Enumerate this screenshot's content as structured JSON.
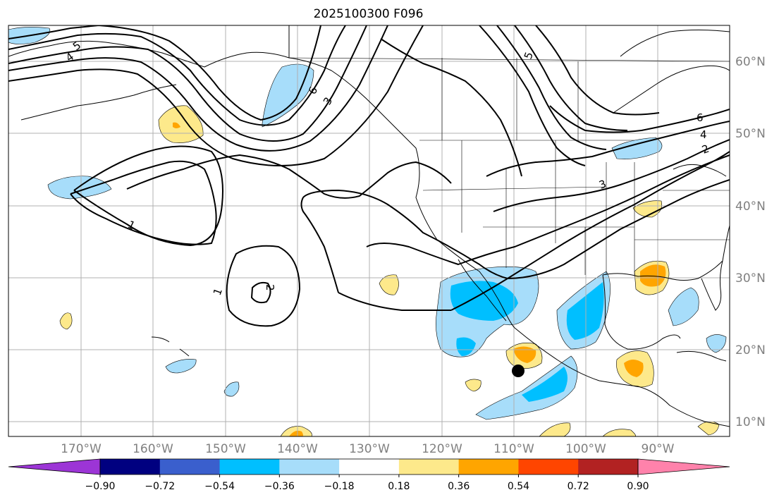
{
  "title": "2025100300 F096",
  "map": {
    "lon_labels": [
      "170°W",
      "160°W",
      "150°W",
      "140°W",
      "130°W",
      "120°W",
      "110°W",
      "100°W",
      "90°W"
    ],
    "lat_labels": [
      "60°N",
      "50°N",
      "40°N",
      "30°N",
      "20°N",
      "10°N"
    ],
    "contour_labels": [
      "5",
      "4",
      "6",
      "3",
      "6",
      "4",
      "2",
      "3",
      "1",
      "1",
      "2",
      "5"
    ],
    "marker": "black-dot"
  },
  "colorbar": {
    "colors": [
      "#9c35d6",
      "#000080",
      "#3a5fcd",
      "#00bfff",
      "#a7ddfa",
      "#ffffff",
      "#fde98b",
      "#ffa500",
      "#ff4500",
      "#b22222",
      "#ff82ab"
    ],
    "tick_labels": [
      "−0.90",
      "−0.72",
      "−0.54",
      "−0.36",
      "−0.18",
      "0.18",
      "0.36",
      "0.54",
      "0.72",
      "0.90"
    ]
  }
}
